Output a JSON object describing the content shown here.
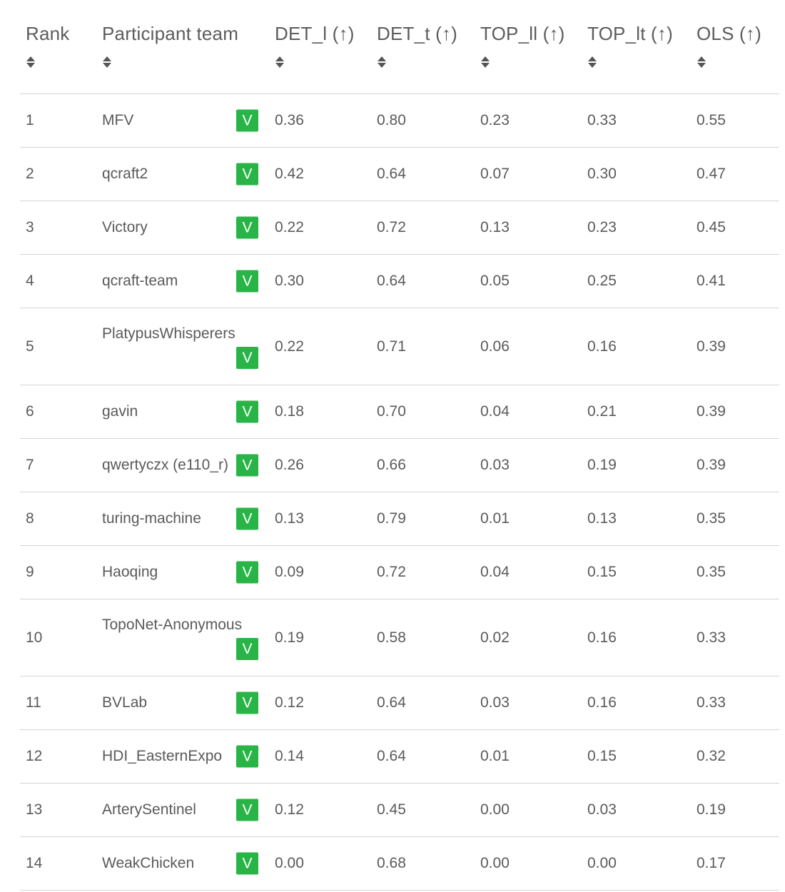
{
  "columns": [
    {
      "key": "rank",
      "label": "Rank"
    },
    {
      "key": "team",
      "label": "Participant team"
    },
    {
      "key": "det_l",
      "label": "DET_l (↑)"
    },
    {
      "key": "det_t",
      "label": "DET_t (↑)"
    },
    {
      "key": "top_ll",
      "label": "TOP_ll (↑)"
    },
    {
      "key": "top_lt",
      "label": "TOP_lt (↑)"
    },
    {
      "key": "ols",
      "label": "OLS (↑)"
    }
  ],
  "rows": [
    {
      "rank": "1",
      "team": "MFV",
      "badge": "V",
      "det_l": "0.36",
      "det_t": "0.80",
      "top_ll": "0.23",
      "top_lt": "0.33",
      "ols": "0.55"
    },
    {
      "rank": "2",
      "team": "qcraft2",
      "badge": "V",
      "det_l": "0.42",
      "det_t": "0.64",
      "top_ll": "0.07",
      "top_lt": "0.30",
      "ols": "0.47"
    },
    {
      "rank": "3",
      "team": "Victory",
      "badge": "V",
      "det_l": "0.22",
      "det_t": "0.72",
      "top_ll": "0.13",
      "top_lt": "0.23",
      "ols": "0.45"
    },
    {
      "rank": "4",
      "team": "qcraft-team",
      "badge": "V",
      "det_l": "0.30",
      "det_t": "0.64",
      "top_ll": "0.05",
      "top_lt": "0.25",
      "ols": "0.41"
    },
    {
      "rank": "5",
      "team": "PlatypusWhisperers",
      "badge": "V",
      "det_l": "0.22",
      "det_t": "0.71",
      "top_ll": "0.06",
      "top_lt": "0.16",
      "ols": "0.39",
      "wrap": true
    },
    {
      "rank": "6",
      "team": "gavin",
      "badge": "V",
      "det_l": "0.18",
      "det_t": "0.70",
      "top_ll": "0.04",
      "top_lt": "0.21",
      "ols": "0.39"
    },
    {
      "rank": "7",
      "team": "qwertyczx (e110_r)",
      "badge": "V",
      "det_l": "0.26",
      "det_t": "0.66",
      "top_ll": "0.03",
      "top_lt": "0.19",
      "ols": "0.39"
    },
    {
      "rank": "8",
      "team": "turing-machine",
      "badge": "V",
      "det_l": "0.13",
      "det_t": "0.79",
      "top_ll": "0.01",
      "top_lt": "0.13",
      "ols": "0.35"
    },
    {
      "rank": "9",
      "team": "Haoqing",
      "badge": "V",
      "det_l": "0.09",
      "det_t": "0.72",
      "top_ll": "0.04",
      "top_lt": "0.15",
      "ols": "0.35"
    },
    {
      "rank": "10",
      "team": "TopoNet-Anonymous",
      "badge": "V",
      "det_l": "0.19",
      "det_t": "0.58",
      "top_ll": "0.02",
      "top_lt": "0.16",
      "ols": "0.33",
      "wrap": true
    },
    {
      "rank": "11",
      "team": "BVLab",
      "badge": "V",
      "det_l": "0.12",
      "det_t": "0.64",
      "top_ll": "0.03",
      "top_lt": "0.16",
      "ols": "0.33"
    },
    {
      "rank": "12",
      "team": "HDI_EasternExpo",
      "badge": "V",
      "det_l": "0.14",
      "det_t": "0.64",
      "top_ll": "0.01",
      "top_lt": "0.15",
      "ols": "0.32"
    },
    {
      "rank": "13",
      "team": "ArterySentinel",
      "badge": "V",
      "det_l": "0.12",
      "det_t": "0.45",
      "top_ll": "0.00",
      "top_lt": "0.03",
      "ols": "0.19"
    },
    {
      "rank": "14",
      "team": "WeakChicken",
      "badge": "V",
      "det_l": "0.00",
      "det_t": "0.68",
      "top_ll": "0.00",
      "top_lt": "0.00",
      "ols": "0.17"
    }
  ],
  "colors": {
    "badge": "#28b446",
    "text": "#555555",
    "divider": "#d4d4d4"
  }
}
